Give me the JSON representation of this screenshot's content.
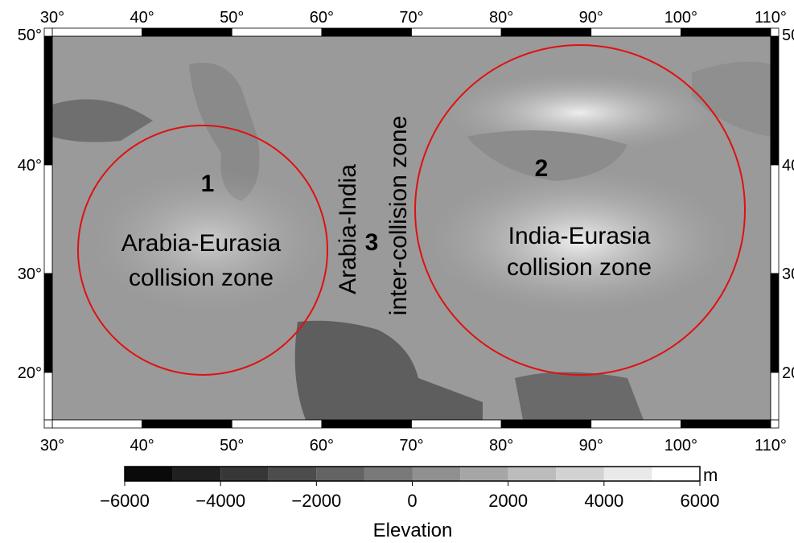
{
  "map": {
    "lon_labels": [
      "30°",
      "40°",
      "50°",
      "60°",
      "70°",
      "80°",
      "90°",
      "100°",
      "110°"
    ],
    "lat_labels": [
      "50°",
      "40°",
      "30°",
      "20°"
    ],
    "zones": [
      {
        "number": "1",
        "label_lines": [
          "Arabia-Eurasia",
          "collision zone"
        ]
      },
      {
        "number": "2",
        "label_lines": [
          "India-Eurasia",
          "collision zone"
        ]
      },
      {
        "number": "3",
        "label_lines": [
          "Arabia-India",
          "inter-collision zone"
        ]
      }
    ]
  },
  "colorbar": {
    "tick_labels": [
      "−6000",
      "−4000",
      "−2000",
      "0",
      "2000",
      "4000",
      "6000"
    ],
    "unit": "m",
    "title": "Elevation"
  }
}
